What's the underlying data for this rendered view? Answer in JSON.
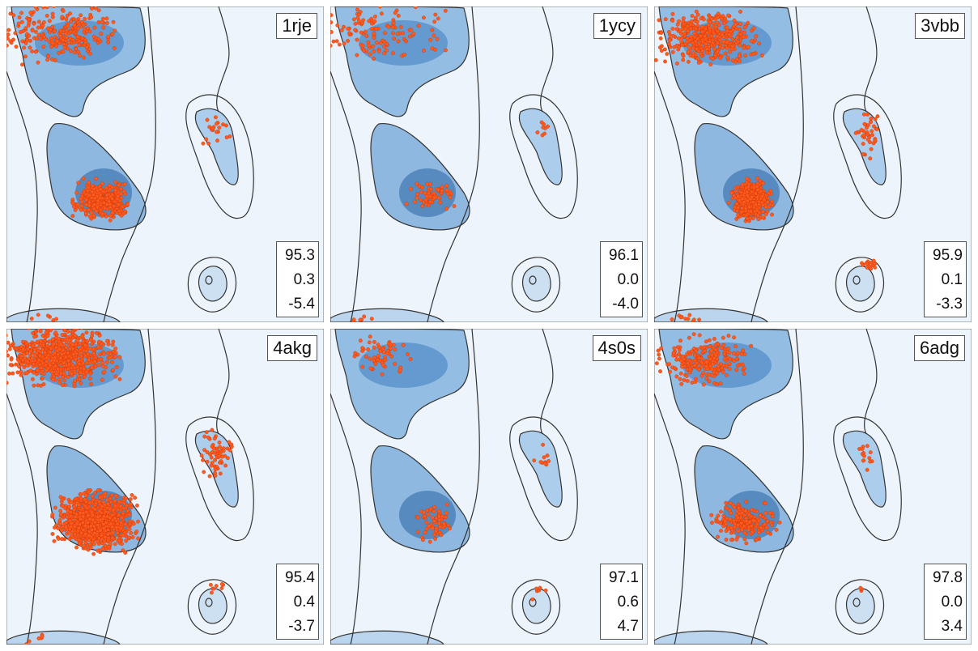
{
  "chart_data": [
    {
      "type": "scatter",
      "title": "1rje",
      "stats": [
        "95.3",
        "0.3",
        "-5.4"
      ],
      "point_color": "#ff5a1f",
      "clusters": [
        {
          "region": "beta",
          "x": [
            -180,
            -60
          ],
          "y": [
            120,
            180
          ],
          "n": 260
        },
        {
          "region": "alpha",
          "x": [
            -100,
            -45
          ],
          "y": [
            -60,
            -20
          ],
          "n": 360
        },
        {
          "region": "left-alpha",
          "x": [
            45,
            70
          ],
          "y": [
            20,
            60
          ],
          "n": 20
        },
        {
          "region": "bottom",
          "x": [
            -170,
            -120
          ],
          "y": [
            -180,
            -170
          ],
          "n": 6
        }
      ]
    },
    {
      "type": "scatter",
      "title": "1ycy",
      "stats": [
        "96.1",
        "0.0",
        "-4.0"
      ],
      "point_color": "#ff5a1f",
      "clusters": [
        {
          "region": "beta",
          "x": [
            -180,
            -60
          ],
          "y": [
            120,
            180
          ],
          "n": 120
        },
        {
          "region": "alpha",
          "x": [
            -90,
            -40
          ],
          "y": [
            -50,
            -20
          ],
          "n": 60
        },
        {
          "region": "left-alpha",
          "x": [
            50,
            70
          ],
          "y": [
            20,
            60
          ],
          "n": 8
        },
        {
          "region": "bottom",
          "x": [
            -170,
            -120
          ],
          "y": [
            -180,
            -170
          ],
          "n": 6
        }
      ]
    },
    {
      "type": "scatter",
      "title": "3vbb",
      "stats": [
        "95.9",
        "0.1",
        "-3.3"
      ],
      "point_color": "#ff5a1f",
      "clusters": [
        {
          "region": "beta",
          "x": [
            -170,
            -70
          ],
          "y": [
            120,
            170
          ],
          "n": 420
        },
        {
          "region": "alpha",
          "x": [
            -90,
            -50
          ],
          "y": [
            -60,
            -20
          ],
          "n": 480
        },
        {
          "region": "left-alpha",
          "x": [
            50,
            75
          ],
          "y": [
            10,
            60
          ],
          "n": 40
        },
        {
          "region": "gamma",
          "x": [
            50,
            75
          ],
          "y": [
            -120,
            -110
          ],
          "n": 14
        },
        {
          "region": "bottom",
          "x": [
            -170,
            -120
          ],
          "y": [
            -180,
            -170
          ],
          "n": 10
        }
      ]
    },
    {
      "type": "scatter",
      "title": "4akg",
      "stats": [
        "95.4",
        "0.4",
        "-3.7"
      ],
      "point_color": "#ff5a1f",
      "clusters": [
        {
          "region": "beta",
          "x": [
            -180,
            -60
          ],
          "y": [
            120,
            180
          ],
          "n": 700
        },
        {
          "region": "alpha",
          "x": [
            -120,
            -40
          ],
          "y": [
            -70,
            -10
          ],
          "n": 900
        },
        {
          "region": "left-alpha",
          "x": [
            45,
            75
          ],
          "y": [
            10,
            60
          ],
          "n": 60
        },
        {
          "region": "gamma",
          "x": [
            50,
            70
          ],
          "y": [
            -120,
            -110
          ],
          "n": 8
        },
        {
          "region": "bottom",
          "x": [
            -170,
            -120
          ],
          "y": [
            -180,
            -170
          ],
          "n": 6
        }
      ]
    },
    {
      "type": "scatter",
      "title": "4s0s",
      "stats": [
        "97.1",
        "0.6",
        "4.7"
      ],
      "point_color": "#ff5a1f",
      "clusters": [
        {
          "region": "beta",
          "x": [
            -150,
            -90
          ],
          "y": [
            130,
            170
          ],
          "n": 60
        },
        {
          "region": "alpha",
          "x": [
            -80,
            -45
          ],
          "y": [
            -60,
            -20
          ],
          "n": 60
        },
        {
          "region": "left-alpha",
          "x": [
            50,
            70
          ],
          "y": [
            20,
            50
          ],
          "n": 10
        },
        {
          "region": "gamma",
          "x": [
            45,
            65
          ],
          "y": [
            -130,
            -110
          ],
          "n": 6
        }
      ]
    },
    {
      "type": "scatter",
      "title": "6adg",
      "stats": [
        "97.8",
        "0.0",
        "3.4"
      ],
      "point_color": "#ff5a1f",
      "clusters": [
        {
          "region": "beta",
          "x": [
            -170,
            -80
          ],
          "y": [
            120,
            170
          ],
          "n": 240
        },
        {
          "region": "alpha",
          "x": [
            -110,
            -45
          ],
          "y": [
            -60,
            -20
          ],
          "n": 200
        },
        {
          "region": "left-alpha",
          "x": [
            50,
            70
          ],
          "y": [
            20,
            50
          ],
          "n": 14
        },
        {
          "region": "gamma",
          "x": [
            50,
            60
          ],
          "y": [
            -125,
            -115
          ],
          "n": 3
        }
      ]
    }
  ]
}
